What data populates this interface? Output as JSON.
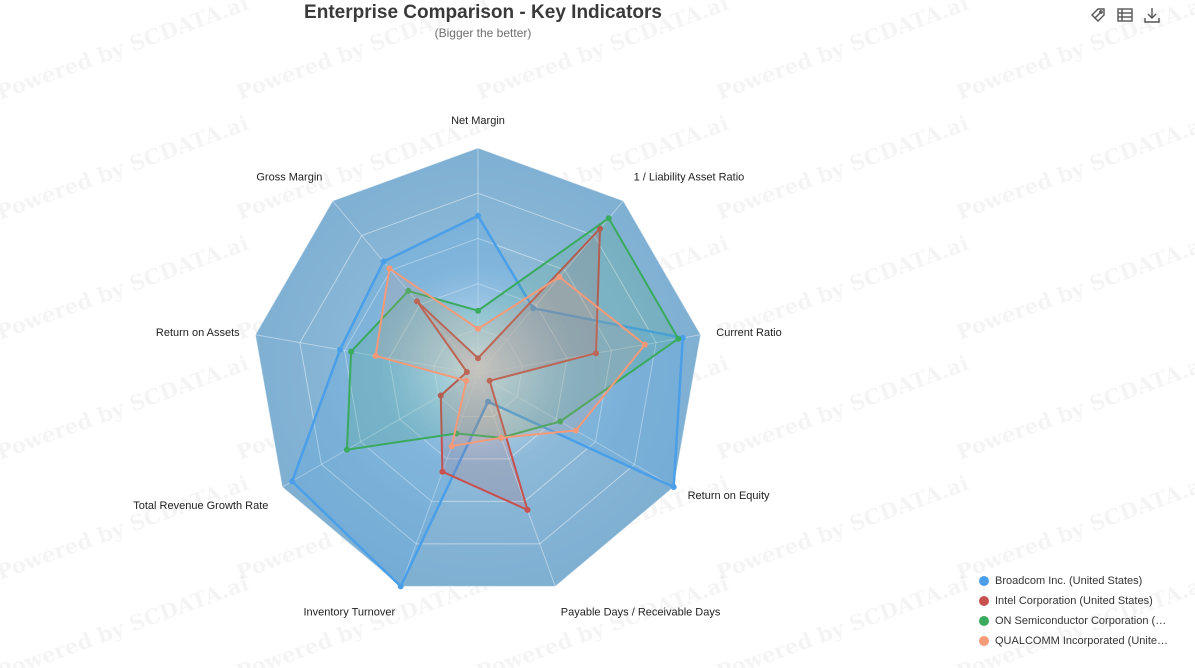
{
  "chart_data": {
    "type": "radar",
    "title": "Enterprise Comparison - Key Indicators",
    "subtitle": "(Bigger the better)",
    "indicators": [
      "Net Margin",
      "1 / Liability Asset Ratio",
      "Current Ratio",
      "Return on Equity",
      "Payable Days / Receivable Days",
      "Inventory Turnover",
      "Total Revenue Growth Rate",
      "Return on Assets",
      "Gross Margin"
    ],
    "max": 1.0,
    "series": [
      {
        "name": "Broadcom Inc. (United States)",
        "color": "#4a9fe8",
        "values": [
          0.7,
          0.38,
          0.92,
          1.0,
          0.13,
          1.0,
          0.95,
          0.62,
          0.65
        ]
      },
      {
        "name": "Intel Corporation (United States)",
        "color": "#c8504f",
        "values": [
          0.07,
          0.84,
          0.53,
          0.06,
          0.64,
          0.46,
          0.19,
          0.05,
          0.42
        ]
      },
      {
        "name": "ON Semiconductor Corporation (U...",
        "color": "#3aaa5e",
        "values": [
          0.28,
          0.9,
          0.9,
          0.42,
          0.3,
          0.28,
          0.67,
          0.57,
          0.48
        ]
      },
      {
        "name": "QUALCOMM Incorporated (United ...",
        "color": "#f49a78",
        "values": [
          0.2,
          0.56,
          0.75,
          0.5,
          0.3,
          0.34,
          0.06,
          0.46,
          0.61
        ]
      }
    ],
    "legend_position": "bottom-right",
    "watermark": "Powered by SCDATA.ai"
  },
  "toolbox": [
    "label-tag-icon",
    "data-view-icon",
    "download-icon"
  ]
}
